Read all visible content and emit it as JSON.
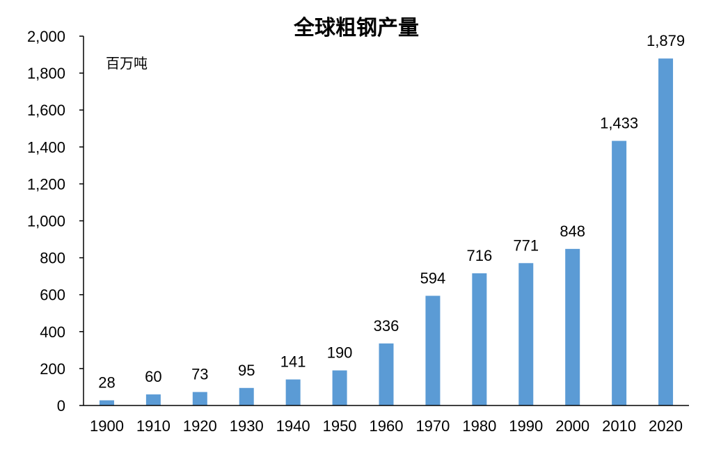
{
  "chart_data": {
    "type": "bar",
    "title": "全球粗钢产量",
    "unit": "百万吨",
    "xlabel": "",
    "ylabel": "",
    "categories": [
      "1900",
      "1910",
      "1920",
      "1930",
      "1940",
      "1950",
      "1960",
      "1970",
      "1980",
      "1990",
      "2000",
      "2010",
      "2020"
    ],
    "values": [
      28,
      60,
      73,
      95,
      141,
      190,
      336,
      594,
      716,
      771,
      848,
      1433,
      1879
    ],
    "value_labels": [
      "28",
      "60",
      "73",
      "95",
      "141",
      "190",
      "336",
      "594",
      "716",
      "771",
      "848",
      "1,433",
      "1,879"
    ],
    "ylim": [
      0,
      2000
    ],
    "yticks": [
      0,
      200,
      400,
      600,
      800,
      1000,
      1200,
      1400,
      1600,
      1800,
      2000
    ],
    "ytick_labels": [
      "0",
      "200",
      "400",
      "600",
      "800",
      "1,000",
      "1,200",
      "1,400",
      "1,600",
      "1,800",
      "2,000"
    ],
    "bar_color": "#5b9bd5",
    "grid": false,
    "legend": "none"
  }
}
